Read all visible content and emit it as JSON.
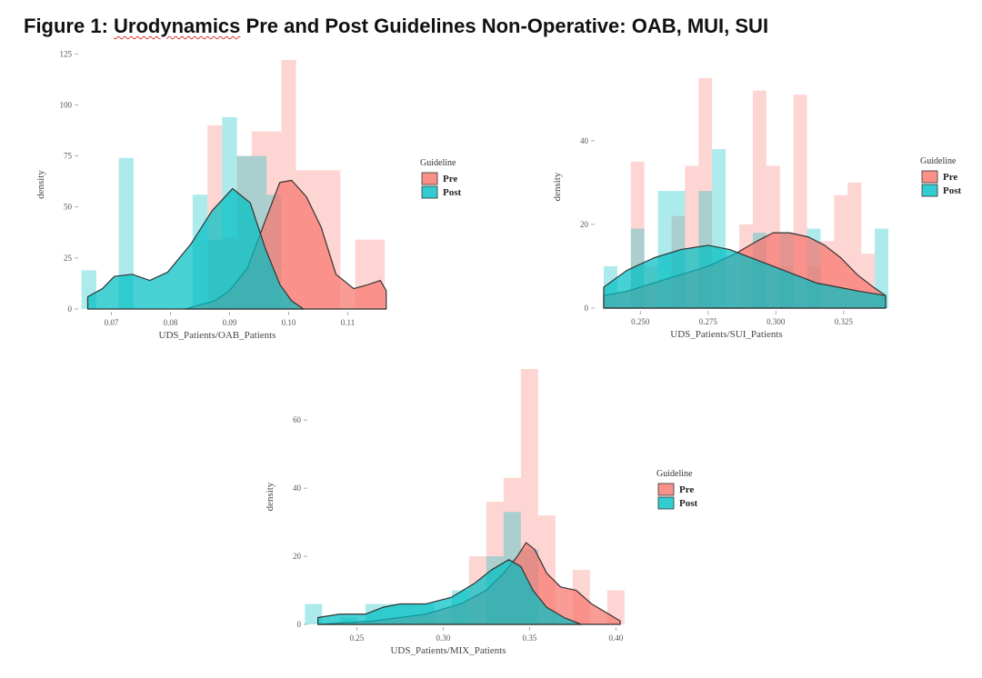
{
  "figure": {
    "title_prefix": "Figure 1: ",
    "title_squiggle": "Urodynamics",
    "title_rest": " Pre and Post Guidelines Non-Operative: OAB, MUI, SUI"
  },
  "colors": {
    "pre": "#f8766d",
    "post": "#00bfc4",
    "outline": "#333333"
  },
  "chart_data": [
    {
      "id": "oab",
      "type": "area",
      "xlabel": "UDS_Patients/OAB_Patients",
      "ylabel": "density",
      "xlim": [
        0.065,
        0.117
      ],
      "ylim": [
        0,
        122
      ],
      "xticks": [
        0.07,
        0.08,
        0.09,
        0.1,
        0.11
      ],
      "xtick_labels": [
        "0.07",
        "0.08",
        "0.09",
        "0.10",
        "0.11"
      ],
      "yticks": [
        0,
        25,
        50,
        75,
        100,
        125
      ],
      "ytick_labels": [
        "0",
        "25",
        "50",
        "75",
        "100",
        "125"
      ],
      "legend": {
        "title": "Guideline",
        "entries": [
          "Pre",
          "Post"
        ],
        "position": "right"
      },
      "histogram": {
        "bin_width": 0.0025,
        "pre": [
          [
            0.0875,
            90
          ],
          [
            0.09,
            35
          ],
          [
            0.0925,
            75
          ],
          [
            0.095,
            87
          ],
          [
            0.0975,
            87
          ],
          [
            0.1,
            122
          ],
          [
            0.1025,
            68
          ],
          [
            0.105,
            68
          ],
          [
            0.1075,
            68
          ],
          [
            0.1125,
            34
          ],
          [
            0.115,
            34
          ]
        ],
        "post": [
          [
            0.0662,
            19
          ],
          [
            0.0725,
            74
          ],
          [
            0.085,
            56
          ],
          [
            0.0875,
            34
          ],
          [
            0.09,
            94
          ],
          [
            0.0925,
            75
          ],
          [
            0.095,
            75
          ],
          [
            0.0975,
            56
          ]
        ]
      },
      "density": {
        "pre": [
          [
            0.0825,
            0
          ],
          [
            0.0875,
            4
          ],
          [
            0.09,
            9
          ],
          [
            0.093,
            20
          ],
          [
            0.096,
            43
          ],
          [
            0.0985,
            62
          ],
          [
            0.1005,
            63
          ],
          [
            0.103,
            55
          ],
          [
            0.1055,
            40
          ],
          [
            0.108,
            17
          ],
          [
            0.111,
            10
          ],
          [
            0.1135,
            12
          ],
          [
            0.1155,
            14
          ],
          [
            0.1165,
            9
          ]
        ],
        "post": [
          [
            0.066,
            6
          ],
          [
            0.0685,
            10
          ],
          [
            0.0705,
            16
          ],
          [
            0.0735,
            17
          ],
          [
            0.0765,
            14
          ],
          [
            0.0795,
            18
          ],
          [
            0.0835,
            32
          ],
          [
            0.087,
            48
          ],
          [
            0.0905,
            59
          ],
          [
            0.0935,
            52
          ],
          [
            0.096,
            30
          ],
          [
            0.0985,
            12
          ],
          [
            0.1005,
            4
          ],
          [
            0.1025,
            0
          ]
        ]
      }
    },
    {
      "id": "sui",
      "type": "area",
      "xlabel": "UDS_Patients/SUI_Patients",
      "ylabel": "density",
      "xlim": [
        0.2345,
        0.3425
      ],
      "ylim": [
        0,
        58
      ],
      "xticks": [
        0.25,
        0.275,
        0.3,
        0.325
      ],
      "xtick_labels": [
        "0.250",
        "0.275",
        "0.300",
        "0.325"
      ],
      "yticks": [
        0,
        20,
        40
      ],
      "ytick_labels": [
        "0",
        "20",
        "40"
      ],
      "legend": {
        "title": "Guideline",
        "entries": [
          "Pre",
          "Post"
        ],
        "position": "right"
      },
      "histogram": {
        "bin_width": 0.005,
        "pre": [
          [
            0.249,
            35
          ],
          [
            0.254,
            10
          ],
          [
            0.264,
            22
          ],
          [
            0.269,
            34
          ],
          [
            0.274,
            55
          ],
          [
            0.289,
            20
          ],
          [
            0.294,
            52
          ],
          [
            0.299,
            34
          ],
          [
            0.304,
            10
          ],
          [
            0.309,
            51
          ],
          [
            0.314,
            10
          ],
          [
            0.319,
            16
          ],
          [
            0.324,
            27
          ],
          [
            0.329,
            30
          ],
          [
            0.334,
            13
          ]
        ],
        "post": [
          [
            0.239,
            10
          ],
          [
            0.249,
            19
          ],
          [
            0.259,
            28
          ],
          [
            0.264,
            28
          ],
          [
            0.274,
            28
          ],
          [
            0.279,
            38
          ],
          [
            0.294,
            18
          ],
          [
            0.304,
            18
          ],
          [
            0.314,
            19
          ],
          [
            0.339,
            19
          ]
        ]
      },
      "density": {
        "pre": [
          [
            0.2365,
            3
          ],
          [
            0.245,
            4
          ],
          [
            0.255,
            6
          ],
          [
            0.265,
            8
          ],
          [
            0.275,
            10
          ],
          [
            0.285,
            13
          ],
          [
            0.293,
            16
          ],
          [
            0.299,
            18
          ],
          [
            0.305,
            18
          ],
          [
            0.312,
            17
          ],
          [
            0.318,
            15
          ],
          [
            0.324,
            12
          ],
          [
            0.33,
            8
          ],
          [
            0.336,
            5
          ],
          [
            0.3405,
            3
          ]
        ],
        "post": [
          [
            0.2365,
            5
          ],
          [
            0.245,
            9
          ],
          [
            0.255,
            12
          ],
          [
            0.265,
            14
          ],
          [
            0.275,
            15
          ],
          [
            0.283,
            14
          ],
          [
            0.291,
            12
          ],
          [
            0.299,
            10
          ],
          [
            0.307,
            8
          ],
          [
            0.315,
            6
          ],
          [
            0.323,
            5
          ],
          [
            0.331,
            4
          ],
          [
            0.3405,
            3
          ]
        ]
      }
    },
    {
      "id": "mix",
      "type": "area",
      "xlabel": "UDS_Patients/MIX_Patients",
      "ylabel": "density",
      "xlim": [
        0.2235,
        0.4035
      ],
      "ylim": [
        0,
        75
      ],
      "xticks": [
        0.25,
        0.3,
        0.35,
        0.4
      ],
      "xtick_labels": [
        "0.25",
        "0.30",
        "0.35",
        "0.40"
      ],
      "yticks": [
        0,
        20,
        40,
        60
      ],
      "ytick_labels": [
        "0",
        "20",
        "40",
        "60"
      ],
      "legend": {
        "title": "Guideline",
        "entries": [
          "Pre",
          "Post"
        ],
        "position": "right"
      },
      "histogram": {
        "bin_width": 0.01,
        "pre": [
          [
            0.32,
            20
          ],
          [
            0.33,
            36
          ],
          [
            0.34,
            43
          ],
          [
            0.35,
            75
          ],
          [
            0.36,
            32
          ],
          [
            0.38,
            16
          ],
          [
            0.4,
            10
          ]
        ],
        "post": [
          [
            0.225,
            6
          ],
          [
            0.245,
            2
          ],
          [
            0.26,
            6
          ],
          [
            0.27,
            6
          ],
          [
            0.28,
            6
          ],
          [
            0.29,
            6
          ],
          [
            0.31,
            10
          ],
          [
            0.33,
            20
          ],
          [
            0.34,
            33
          ],
          [
            0.35,
            22
          ]
        ]
      },
      "density": {
        "pre": [
          [
            0.2275,
            0
          ],
          [
            0.26,
            1
          ],
          [
            0.29,
            3
          ],
          [
            0.31,
            6
          ],
          [
            0.325,
            10
          ],
          [
            0.335,
            15
          ],
          [
            0.343,
            20
          ],
          [
            0.348,
            24
          ],
          [
            0.353,
            22
          ],
          [
            0.36,
            15
          ],
          [
            0.368,
            11
          ],
          [
            0.377,
            10
          ],
          [
            0.386,
            6
          ],
          [
            0.396,
            3
          ],
          [
            0.4025,
            1
          ]
        ],
        "post": [
          [
            0.2275,
            2
          ],
          [
            0.24,
            3
          ],
          [
            0.255,
            3
          ],
          [
            0.265,
            5
          ],
          [
            0.275,
            6
          ],
          [
            0.29,
            6
          ],
          [
            0.305,
            8
          ],
          [
            0.318,
            12
          ],
          [
            0.328,
            16
          ],
          [
            0.338,
            19
          ],
          [
            0.345,
            17
          ],
          [
            0.352,
            10
          ],
          [
            0.36,
            5
          ],
          [
            0.37,
            2
          ],
          [
            0.38,
            0
          ]
        ]
      }
    }
  ]
}
